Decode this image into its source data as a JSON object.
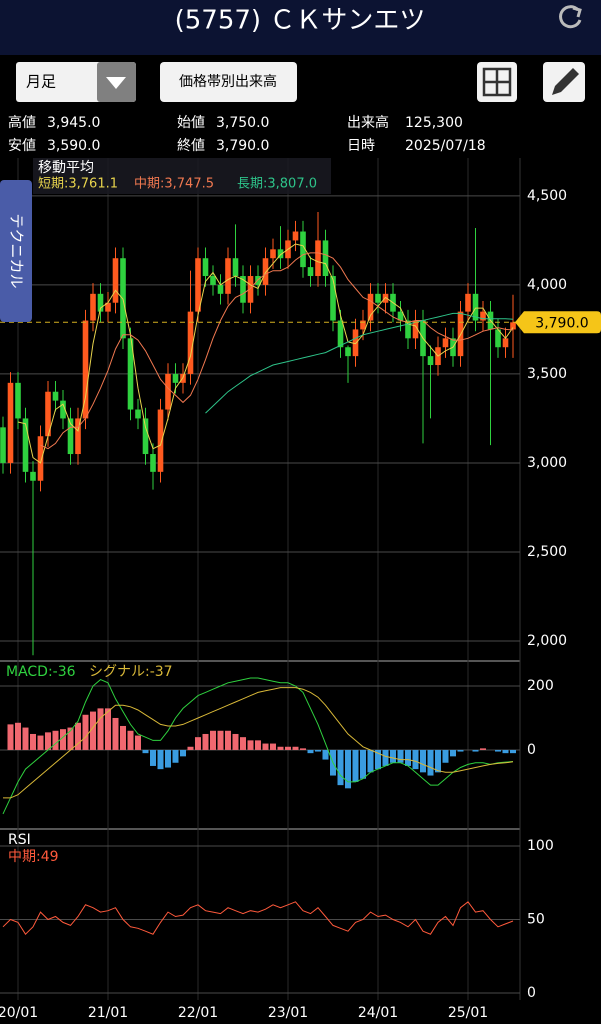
{
  "header": {
    "title": "(5757) ＣＫサンエツ"
  },
  "controls": {
    "period": "月足",
    "volume_profile": "価格帯別出来高"
  },
  "side_tab": "テクニカル",
  "quote": {
    "rows": [
      [
        {
          "label": "高値",
          "value": "3,945.0"
        },
        {
          "label": "始値",
          "value": "3,750.0"
        },
        {
          "label": "出来高",
          "value": "125,300"
        }
      ],
      [
        {
          "label": "安値",
          "value": "3,590.0"
        },
        {
          "label": "終値",
          "value": "3,790.0"
        },
        {
          "label": "日時",
          "value": "2025/07/18"
        }
      ]
    ]
  },
  "chart_data": [
    {
      "type": "candlestick",
      "categories": [
        null,
        null,
        "20/01",
        null,
        null,
        null,
        null,
        null,
        null,
        null,
        null,
        null,
        null,
        null,
        "21/01",
        null,
        null,
        null,
        null,
        null,
        null,
        null,
        null,
        null,
        null,
        null,
        "22/01",
        null,
        null,
        null,
        null,
        null,
        null,
        null,
        null,
        null,
        null,
        null,
        "23/01",
        null,
        null,
        null,
        null,
        null,
        null,
        null,
        null,
        null,
        null,
        null,
        "24/01",
        null,
        null,
        null,
        null,
        null,
        null,
        null,
        null,
        null,
        null,
        null,
        "25/01",
        null,
        null,
        null,
        null,
        null,
        null
      ],
      "open": [
        3200,
        3000,
        3450,
        3250,
        2950,
        2900,
        3150,
        3400,
        3350,
        3250,
        3050,
        3250,
        3800,
        3950,
        3850,
        3900,
        4150,
        3700,
        3300,
        3250,
        3050,
        2950,
        3300,
        3500,
        3450,
        3500,
        3850,
        4150,
        4050,
        4000,
        3950,
        4150,
        4050,
        3900,
        4050,
        4000,
        4150,
        4200,
        4150,
        4250,
        4300,
        4100,
        4050,
        4250,
        4050,
        3800,
        3650,
        3600,
        3750,
        3800,
        3950,
        3900,
        3950,
        3850,
        3800,
        3700,
        3800,
        3600,
        3550,
        3650,
        3700,
        3600,
        3850,
        3950,
        3800,
        3850,
        3750,
        3650,
        3750
      ],
      "high": [
        3260,
        3510,
        3510,
        3310,
        3010,
        3210,
        3460,
        3460,
        3410,
        3310,
        3310,
        3860,
        4010,
        4010,
        3960,
        4210,
        4210,
        3760,
        3360,
        3310,
        3110,
        3360,
        3560,
        3560,
        3560,
        4080,
        4210,
        4210,
        4110,
        4060,
        4210,
        4340,
        4110,
        4110,
        4110,
        4210,
        4260,
        4330,
        4310,
        4360,
        4360,
        4160,
        4410,
        4310,
        4110,
        3860,
        3660,
        3810,
        3860,
        4010,
        4010,
        4010,
        4010,
        3910,
        3860,
        3860,
        3860,
        3660,
        3710,
        3760,
        3760,
        3910,
        4010,
        4320,
        3910,
        3910,
        3810,
        3760,
        3945
      ],
      "low": [
        2940,
        2940,
        3190,
        2890,
        1920,
        2840,
        3090,
        3290,
        3190,
        2990,
        2990,
        3190,
        3740,
        3790,
        3790,
        3840,
        3640,
        3240,
        3190,
        2990,
        2850,
        2890,
        3240,
        3390,
        3390,
        3440,
        3790,
        3990,
        3940,
        3890,
        3890,
        3990,
        3840,
        3840,
        3940,
        3940,
        4090,
        4090,
        4090,
        4190,
        4040,
        3990,
        3990,
        3990,
        3740,
        3590,
        3450,
        3540,
        3690,
        3740,
        3840,
        3840,
        3790,
        3740,
        3640,
        3640,
        3110,
        3250,
        3490,
        3590,
        3540,
        3540,
        3790,
        3740,
        3740,
        3100,
        3590,
        3590,
        3590
      ],
      "close": [
        3000,
        3450,
        3250,
        2950,
        2900,
        3150,
        3400,
        3350,
        3250,
        3050,
        3250,
        3800,
        3950,
        3850,
        3900,
        4150,
        3700,
        3300,
        3250,
        3050,
        2950,
        3300,
        3500,
        3450,
        3500,
        3850,
        4150,
        4050,
        4000,
        3950,
        4150,
        4050,
        3900,
        4050,
        4000,
        4150,
        4200,
        4150,
        4250,
        4300,
        4100,
        4050,
        4250,
        4050,
        3800,
        3650,
        3600,
        3750,
        3800,
        3950,
        3900,
        3950,
        3850,
        3800,
        3700,
        3800,
        3600,
        3550,
        3650,
        3700,
        3600,
        3850,
        3950,
        3800,
        3850,
        3750,
        3650,
        3700,
        3790
      ],
      "up_color": "#ff5a1f",
      "down_color": "#2fd13f",
      "ylim": [
        1893,
        4713
      ],
      "yticks": [
        {
          "value": 2000,
          "label": "2,000"
        },
        {
          "value": 2500,
          "label": "2,500"
        },
        {
          "value": 3000,
          "label": "3,000"
        },
        {
          "value": 3500,
          "label": "3,500"
        },
        {
          "value": 4000,
          "label": "4,000"
        },
        {
          "value": 4500,
          "label": "4,500"
        }
      ],
      "grid": true,
      "last_price_label": "3,790.0",
      "overlay_title": "移動平均",
      "overlays": [
        {
          "label": "短期:3,761.1",
          "color": "#e8d44d",
          "values": [
            null,
            null,
            3230,
            3220,
            3030,
            3000,
            3150,
            3300,
            3330,
            3220,
            3180,
            3370,
            3670,
            3870,
            3900,
            3970,
            3920,
            3720,
            3420,
            3200,
            3080,
            3100,
            3250,
            3420,
            3480,
            3600,
            3830,
            4020,
            4070,
            4000,
            4030,
            4050,
            4030,
            4000,
            3980,
            4070,
            4120,
            4170,
            4200,
            4230,
            4220,
            4150,
            4130,
            4120,
            4030,
            3830,
            3680,
            3670,
            3720,
            3830,
            3880,
            3930,
            3900,
            3870,
            3780,
            3770,
            3700,
            3650,
            3600,
            3630,
            3650,
            3720,
            3800,
            3870,
            3870,
            3800,
            3750,
            3700,
            3761.1
          ]
        },
        {
          "label": "中期:3,747.5",
          "color": "#f07850",
          "values": [
            null,
            null,
            null,
            null,
            null,
            3100,
            3080,
            3110,
            3170,
            3200,
            3200,
            3250,
            3330,
            3420,
            3520,
            3640,
            3720,
            3720,
            3690,
            3630,
            3550,
            3470,
            3420,
            3380,
            3340,
            3380,
            3470,
            3580,
            3700,
            3800,
            3880,
            3930,
            3950,
            3980,
            4030,
            4060,
            4080,
            4080,
            4100,
            4140,
            4170,
            4180,
            4180,
            4170,
            4150,
            4100,
            4030,
            3980,
            3930,
            3910,
            3880,
            3850,
            3820,
            3800,
            3790,
            3800,
            3800,
            3760,
            3730,
            3710,
            3690,
            3690,
            3700,
            3720,
            3740,
            3750,
            3760,
            3750,
            3747.5
          ]
        },
        {
          "label": "長期:3,807.0",
          "color": "#2ec48a",
          "values": [
            null,
            null,
            null,
            null,
            null,
            null,
            null,
            null,
            null,
            null,
            null,
            null,
            null,
            null,
            null,
            null,
            null,
            null,
            null,
            null,
            null,
            null,
            null,
            null,
            null,
            null,
            null,
            3280,
            3320,
            3360,
            3400,
            3430,
            3460,
            3490,
            3510,
            3530,
            3550,
            3560,
            3570,
            3580,
            3590,
            3600,
            3610,
            3620,
            3640,
            3660,
            3680,
            3700,
            3720,
            3730,
            3740,
            3750,
            3760,
            3770,
            3780,
            3790,
            3800,
            3810,
            3820,
            3830,
            3840,
            3840,
            3830,
            3820,
            3810,
            3810,
            3810,
            3810,
            3807.0
          ]
        }
      ]
    },
    {
      "type": "macd",
      "ylim": [
        -244,
        275
      ],
      "yticks": [
        0,
        200
      ],
      "histogram": {
        "up_color": "#f06870",
        "down_color": "#3a9ce0",
        "values": [
          null,
          80,
          85,
          70,
          50,
          45,
          55,
          60,
          65,
          70,
          85,
          110,
          120,
          130,
          130,
          100,
          75,
          60,
          45,
          -10,
          -50,
          -60,
          -55,
          -40,
          -20,
          10,
          40,
          50,
          60,
          60,
          60,
          50,
          40,
          30,
          30,
          20,
          20,
          10,
          10,
          10,
          5,
          -10,
          -5,
          -30,
          -80,
          -110,
          -120,
          -100,
          -90,
          -70,
          -60,
          -50,
          -40,
          -40,
          -50,
          -60,
          -70,
          -80,
          -70,
          -40,
          -20,
          -5,
          0,
          -5,
          5,
          0,
          -5,
          -10,
          -10
        ]
      },
      "series": [
        {
          "label": "MACD:-36",
          "color": "#2fd13f",
          "values": [
            -200,
            -150,
            -100,
            -60,
            -40,
            -20,
            0,
            20,
            40,
            60,
            90,
            150,
            200,
            220,
            210,
            160,
            120,
            80,
            50,
            40,
            30,
            30,
            60,
            100,
            130,
            150,
            170,
            180,
            190,
            200,
            210,
            215,
            220,
            225,
            225,
            220,
            215,
            210,
            210,
            200,
            180,
            130,
            80,
            20,
            -40,
            -80,
            -100,
            -100,
            -90,
            -70,
            -60,
            -50,
            -40,
            -40,
            -50,
            -70,
            -90,
            -110,
            -110,
            -90,
            -70,
            -55,
            -45,
            -40,
            -40,
            -45,
            -40,
            -38,
            -36
          ]
        },
        {
          "label": "シグナル:-37",
          "color": "#d8b838",
          "values": [
            -150,
            -150,
            -140,
            -120,
            -100,
            -80,
            -60,
            -40,
            -20,
            0,
            20,
            40,
            70,
            100,
            120,
            140,
            140,
            135,
            125,
            110,
            95,
            80,
            75,
            75,
            80,
            90,
            100,
            110,
            120,
            130,
            140,
            150,
            160,
            170,
            180,
            185,
            190,
            195,
            195,
            195,
            190,
            180,
            165,
            140,
            110,
            80,
            50,
            30,
            10,
            0,
            -10,
            -20,
            -25,
            -30,
            -30,
            -35,
            -45,
            -55,
            -65,
            -70,
            -70,
            -65,
            -60,
            -55,
            -50,
            -45,
            -42,
            -40,
            -37
          ]
        }
      ]
    },
    {
      "type": "line",
      "title": "RSI",
      "ylim": [
        -4.8,
        110.9
      ],
      "yticks": [
        0,
        50,
        100
      ],
      "series": [
        {
          "label": "中期:49",
          "color": "#ff5a3c",
          "values": [
            45,
            50,
            48,
            40,
            45,
            55,
            50,
            52,
            48,
            46,
            52,
            60,
            58,
            55,
            56,
            58,
            50,
            45,
            44,
            42,
            40,
            48,
            55,
            52,
            53,
            58,
            60,
            56,
            55,
            54,
            58,
            56,
            54,
            56,
            55,
            57,
            60,
            58,
            60,
            62,
            56,
            54,
            58,
            52,
            46,
            44,
            42,
            48,
            50,
            55,
            52,
            53,
            50,
            48,
            45,
            50,
            42,
            40,
            48,
            52,
            46,
            58,
            62,
            55,
            56,
            50,
            45,
            47,
            49
          ]
        }
      ]
    }
  ]
}
